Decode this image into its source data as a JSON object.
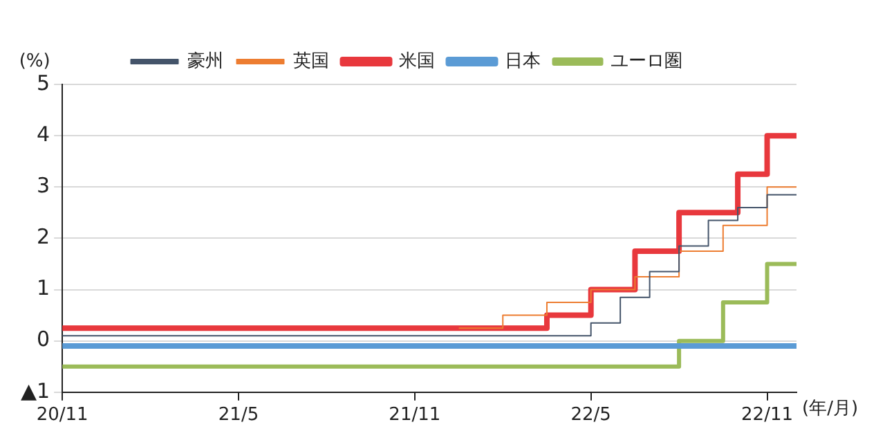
{
  "chart_data": {
    "type": "step",
    "xlabel": "(年/月)",
    "ylabel": "(%)",
    "categories": [
      "20/11",
      null,
      null,
      null,
      null,
      null,
      null,
      null,
      null,
      null,
      null,
      null,
      "21/5",
      null,
      null,
      null,
      null,
      null,
      null,
      null,
      null,
      null,
      null,
      null,
      "21/11",
      null,
      null,
      null,
      null,
      null,
      null,
      null,
      null,
      null,
      null,
      null,
      "22/5",
      null,
      null,
      null,
      null,
      null,
      null,
      null,
      null,
      null,
      null,
      null,
      "22/11",
      null,
      null
    ],
    "ylim": [
      -1,
      5
    ],
    "yticks": [
      {
        "value": -1,
        "label": "▲1"
      },
      0,
      1,
      2,
      3,
      4,
      5
    ],
    "grid": "y",
    "legend": "top",
    "series": [
      {
        "name": "豪州",
        "color": "#44546a",
        "values": [
          0.1,
          0.1,
          0.1,
          0.1,
          0.1,
          0.1,
          0.1,
          0.1,
          0.1,
          0.1,
          0.1,
          0.1,
          0.1,
          0.1,
          0.1,
          0.1,
          0.1,
          0.1,
          0.1,
          0.1,
          0.1,
          0.1,
          0.1,
          0.1,
          0.1,
          0.1,
          0.1,
          0.1,
          0.1,
          0.1,
          0.1,
          0.1,
          0.1,
          0.1,
          0.1,
          0.1,
          0.35,
          0.35,
          0.85,
          0.85,
          1.35,
          1.35,
          1.85,
          1.85,
          2.35,
          2.35,
          2.6,
          2.6,
          2.85,
          2.85,
          2.85
        ]
      },
      {
        "name": "英国",
        "color": "#ed7d31",
        "values": [
          null,
          null,
          null,
          null,
          null,
          null,
          null,
          null,
          null,
          null,
          null,
          null,
          null,
          null,
          null,
          null,
          null,
          null,
          null,
          null,
          null,
          null,
          null,
          null,
          null,
          null,
          null,
          0.25,
          0.25,
          0.25,
          0.5,
          0.5,
          0.5,
          0.75,
          0.75,
          0.75,
          1.0,
          1.0,
          1.0,
          1.25,
          1.25,
          1.25,
          1.75,
          1.75,
          1.75,
          2.25,
          2.25,
          2.25,
          3.0,
          3.0,
          3.0
        ]
      },
      {
        "name": "米国",
        "color": "#e8383d",
        "values": [
          0.25,
          0.25,
          0.25,
          0.25,
          0.25,
          0.25,
          0.25,
          0.25,
          0.25,
          0.25,
          0.25,
          0.25,
          0.25,
          0.25,
          0.25,
          0.25,
          0.25,
          0.25,
          0.25,
          0.25,
          0.25,
          0.25,
          0.25,
          0.25,
          0.25,
          0.25,
          0.25,
          0.25,
          0.25,
          0.25,
          0.25,
          0.25,
          0.25,
          0.5,
          0.5,
          0.5,
          1.0,
          1.0,
          1.0,
          1.75,
          1.75,
          1.75,
          2.5,
          2.5,
          2.5,
          2.5,
          3.25,
          3.25,
          4.0,
          4.0,
          4.0
        ]
      },
      {
        "name": "日本",
        "color": "#5b9bd5",
        "values": [
          -0.1,
          -0.1,
          -0.1,
          -0.1,
          -0.1,
          -0.1,
          -0.1,
          -0.1,
          -0.1,
          -0.1,
          -0.1,
          -0.1,
          -0.1,
          -0.1,
          -0.1,
          -0.1,
          -0.1,
          -0.1,
          -0.1,
          -0.1,
          -0.1,
          -0.1,
          -0.1,
          -0.1,
          -0.1,
          -0.1,
          -0.1,
          -0.1,
          -0.1,
          -0.1,
          -0.1,
          -0.1,
          -0.1,
          -0.1,
          -0.1,
          -0.1,
          -0.1,
          -0.1,
          -0.1,
          -0.1,
          -0.1,
          -0.1,
          -0.1,
          -0.1,
          -0.1,
          -0.1,
          -0.1,
          -0.1,
          -0.1,
          -0.1,
          -0.1
        ]
      },
      {
        "name": "ユーロ圏",
        "color": "#9bbb59",
        "values": [
          -0.5,
          -0.5,
          -0.5,
          -0.5,
          -0.5,
          -0.5,
          -0.5,
          -0.5,
          -0.5,
          -0.5,
          -0.5,
          -0.5,
          -0.5,
          -0.5,
          -0.5,
          -0.5,
          -0.5,
          -0.5,
          -0.5,
          -0.5,
          -0.5,
          -0.5,
          -0.5,
          -0.5,
          -0.5,
          -0.5,
          -0.5,
          -0.5,
          -0.5,
          -0.5,
          -0.5,
          -0.5,
          -0.5,
          -0.5,
          -0.5,
          -0.5,
          -0.5,
          -0.5,
          -0.5,
          -0.5,
          -0.5,
          -0.5,
          0,
          0,
          0,
          0.75,
          0.75,
          0.75,
          1.5,
          1.5,
          1.5
        ]
      }
    ]
  }
}
